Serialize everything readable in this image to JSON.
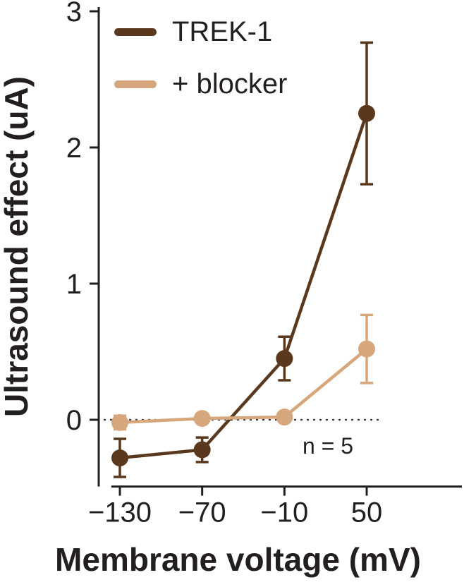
{
  "figure": {
    "y_axis_label": "Ultrasound effect (uA)",
    "x_axis_label": "Membrane voltage (mV)",
    "annotation": "n = 5"
  },
  "legend": {
    "items": [
      {
        "label": "TREK-1"
      },
      {
        "label": "+ blocker"
      }
    ]
  },
  "chart_data": {
    "type": "line",
    "title": "",
    "xlabel": "Membrane voltage (mV)",
    "ylabel": "Ultrasound effect (uA)",
    "x": [
      -130,
      -70,
      -10,
      50
    ],
    "x_tick_labels": [
      "−130",
      "−70",
      "−10",
      "50"
    ],
    "xlim": [
      -130,
      50
    ],
    "y_ticks": [
      0,
      1,
      2,
      3
    ],
    "y_tick_labels": [
      "0",
      "1",
      "2",
      "3"
    ],
    "ylim": [
      -0.49,
      3
    ],
    "zero_line": true,
    "grid": false,
    "legend_position": "top-left-inside",
    "annotation": "n = 5",
    "series": [
      {
        "name": "TREK-1",
        "color": "#59381d",
        "values": [
          -0.28,
          -0.22,
          0.45,
          2.25
        ],
        "errors": [
          0.14,
          0.09,
          0.16,
          0.52
        ]
      },
      {
        "name": "+ blocker",
        "color": "#d6a67c",
        "values": [
          -0.02,
          0.01,
          0.02,
          0.52
        ],
        "errors": [
          0.05,
          0.03,
          0.03,
          0.25
        ]
      }
    ]
  }
}
